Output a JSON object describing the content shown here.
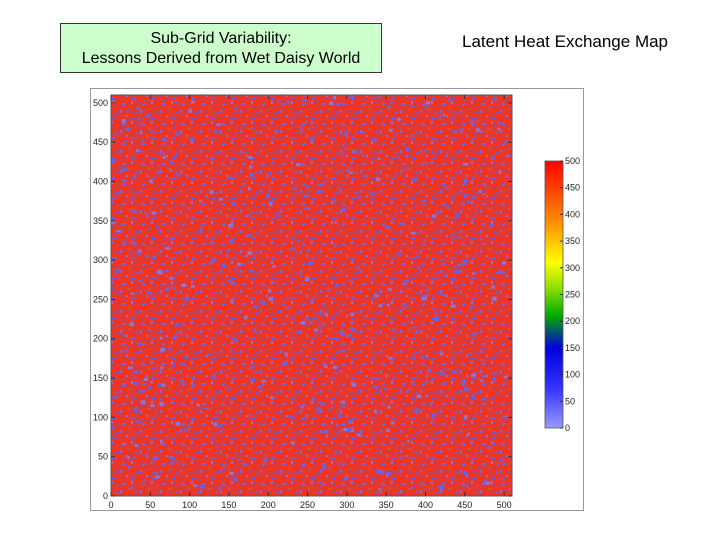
{
  "slide": {
    "title_line1": "Sub-Grid Variability:",
    "title_line2": "Lessons Derived from Wet Daisy World"
  },
  "chart_data": {
    "type": "heatmap",
    "title": "Latent Heat Exchange Map",
    "x_ticks": [
      0,
      50,
      100,
      150,
      200,
      250,
      300,
      350,
      400,
      450,
      500
    ],
    "y_ticks": [
      0,
      50,
      100,
      150,
      200,
      250,
      300,
      350,
      400,
      450,
      500
    ],
    "xlim": [
      0,
      510
    ],
    "ylim": [
      0,
      510
    ],
    "colorbar": {
      "ticks": [
        0,
        50,
        100,
        150,
        200,
        250,
        300,
        350,
        400,
        450,
        500
      ],
      "range": [
        0,
        500
      ],
      "colors": [
        "#8080ff",
        "#0000ff",
        "#00cc00",
        "#ffff00",
        "#ff0000"
      ]
    },
    "dominant_color": "#ee3322",
    "secondary_color": "#7070e0"
  }
}
